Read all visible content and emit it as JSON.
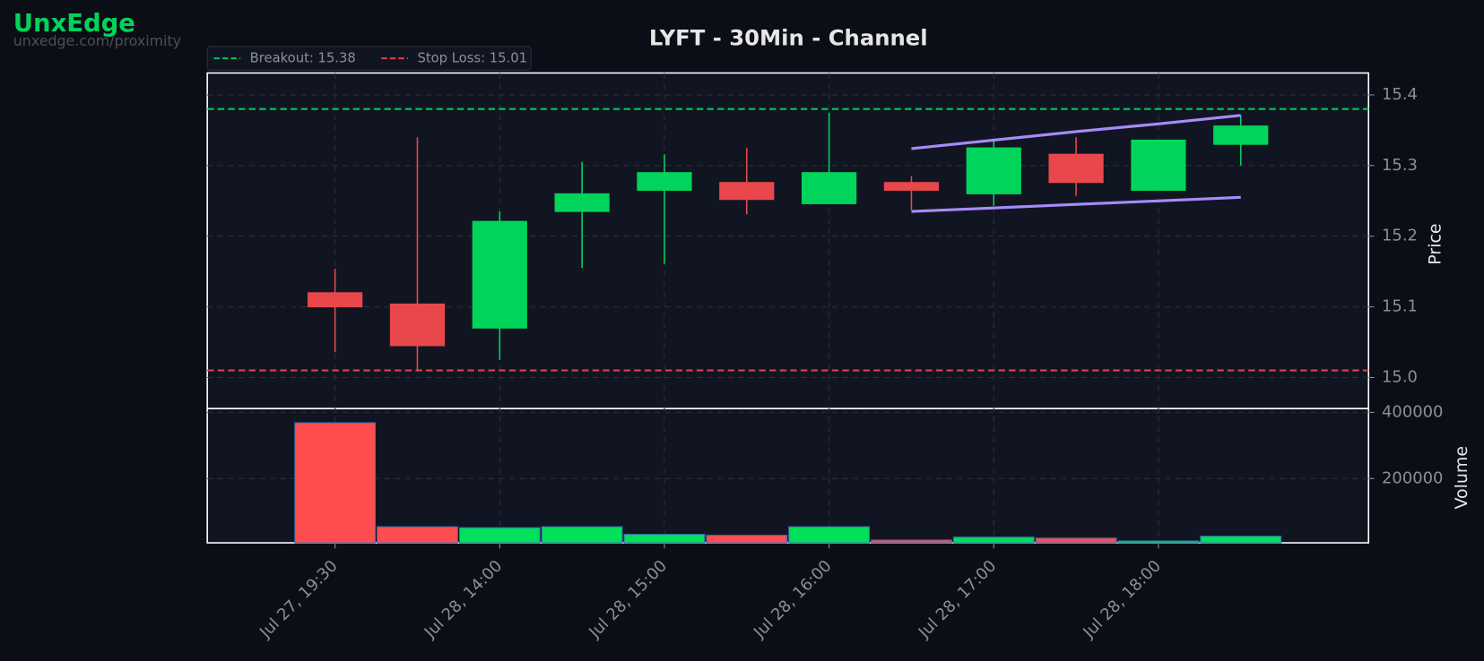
{
  "watermark": {
    "brand": "UnxEdge",
    "url": "unxedge.com/proximity"
  },
  "chart_data": {
    "type": "candlestick",
    "title": "LYFT - 30Min - Channel",
    "categories": [
      "Jul 27, 19:30",
      null,
      "Jul 28, 14:00",
      null,
      "Jul 28, 15:00",
      null,
      "Jul 28, 16:00",
      null,
      "Jul 28, 17:00",
      null,
      "Jul 28, 18:00",
      null
    ],
    "open": [
      15.12,
      15.104,
      15.07,
      15.235,
      15.265,
      15.276,
      15.246,
      15.276,
      15.26,
      15.316,
      15.265,
      15.33
    ],
    "high": [
      15.154,
      15.34,
      15.235,
      15.305,
      15.316,
      15.325,
      15.375,
      15.285,
      15.336,
      15.34,
      15.336,
      15.371
    ],
    "low": [
      15.036,
      15.011,
      15.025,
      15.155,
      15.161,
      15.231,
      15.246,
      15.237,
      15.243,
      15.257,
      15.265,
      15.3
    ],
    "close": [
      15.1,
      15.045,
      15.221,
      15.26,
      15.29,
      15.252,
      15.29,
      15.265,
      15.325,
      15.276,
      15.336,
      15.356
    ],
    "up_color": "#00d45a",
    "down_color": "#e8484c",
    "y_label": "Price",
    "ylim": [
      14.956,
      15.431
    ],
    "yticks": [
      {
        "value": 15,
        "label": "15.0"
      },
      15.1,
      15.2,
      15.3,
      15.4
    ],
    "grid": true,
    "levels": [
      {
        "name": "Breakout: 15.38",
        "value": 15.38,
        "color": "#00c853"
      },
      {
        "name": "Stop Loss: 15.01",
        "value": 15.01,
        "color": "#e0404a"
      }
    ],
    "channel": {
      "color": "#a78bfa",
      "upper": [
        null,
        null,
        null,
        null,
        null,
        null,
        null,
        15.324,
        15.336,
        15.348,
        15.359,
        15.371
      ],
      "lower": [
        null,
        null,
        null,
        null,
        null,
        null,
        null,
        15.235,
        15.24,
        15.245,
        15.25,
        15.255
      ]
    },
    "volume": {
      "label": "Volume",
      "values": [
        368600,
        54300,
        51400,
        54300,
        31400,
        28600,
        54300,
        14300,
        22900,
        20000,
        11400,
        25700
      ],
      "ylim": [
        5700,
        411400
      ],
      "yticks": [
        200000,
        400000
      ]
    }
  }
}
